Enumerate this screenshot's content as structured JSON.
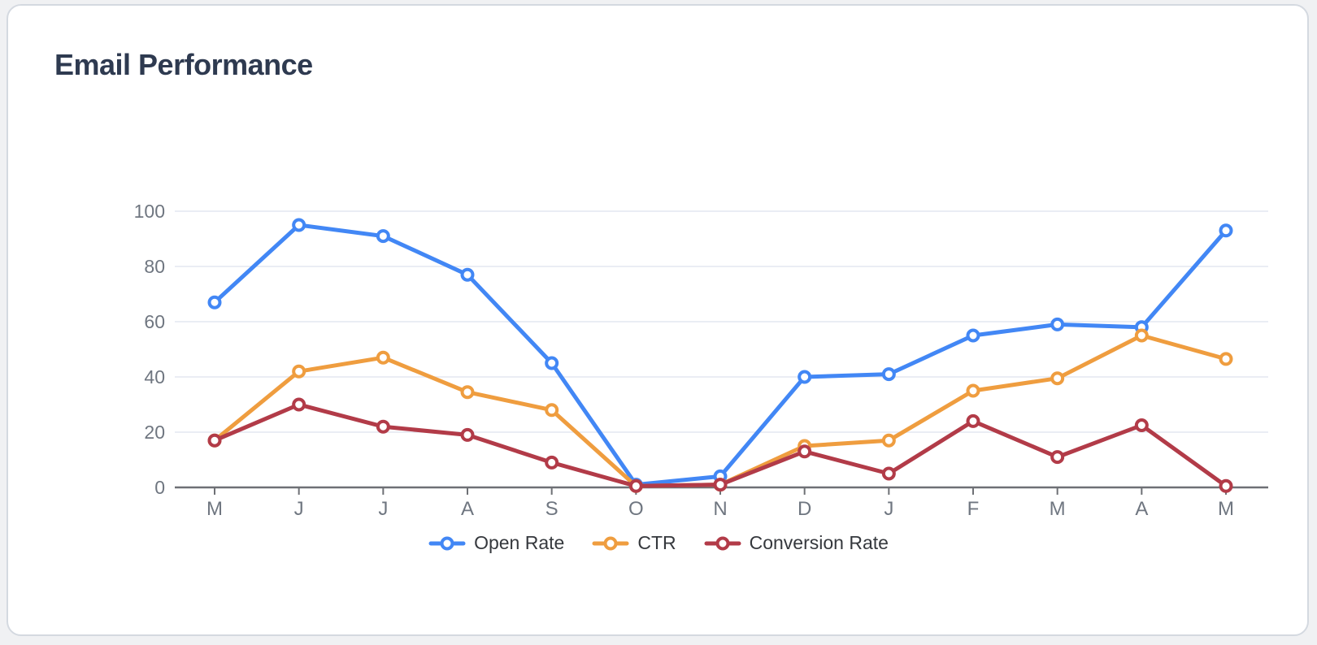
{
  "page": {
    "background_color": "#F0F1F3",
    "card": {
      "background_color": "#FFFFFF",
      "border_color": "#D4D9E0"
    }
  },
  "header": {
    "title_color": "#2E3A50"
  },
  "chart_data": {
    "type": "line",
    "title": "Email Performance",
    "x_labels": [
      "M",
      "J",
      "J",
      "A",
      "S",
      "O",
      "N",
      "D",
      "J",
      "F",
      "M",
      "A",
      "M"
    ],
    "y_ticks": [
      0,
      20,
      40,
      60,
      80,
      100
    ],
    "ylim": [
      0,
      100
    ],
    "grid": true,
    "legend_position": "bottom",
    "axis_color": "#6E7075",
    "grid_color": "#E4E7F1",
    "tick_label_color": "#6F7680",
    "series": [
      {
        "name": "Open Rate",
        "color": "#4287F5",
        "values": [
          67,
          95,
          91,
          77,
          45,
          1,
          4,
          40,
          41,
          55,
          59,
          58,
          93
        ]
      },
      {
        "name": "CTR",
        "color": "#EF9D3F",
        "values": [
          17,
          42,
          47,
          34.5,
          28,
          0.5,
          1,
          15,
          17,
          35,
          39.5,
          55,
          46.5
        ]
      },
      {
        "name": "Conversion Rate",
        "color": "#B23B48",
        "values": [
          17,
          30,
          22,
          19,
          9,
          0.5,
          1,
          13,
          5,
          24,
          11,
          22.5,
          0.5
        ]
      }
    ]
  }
}
